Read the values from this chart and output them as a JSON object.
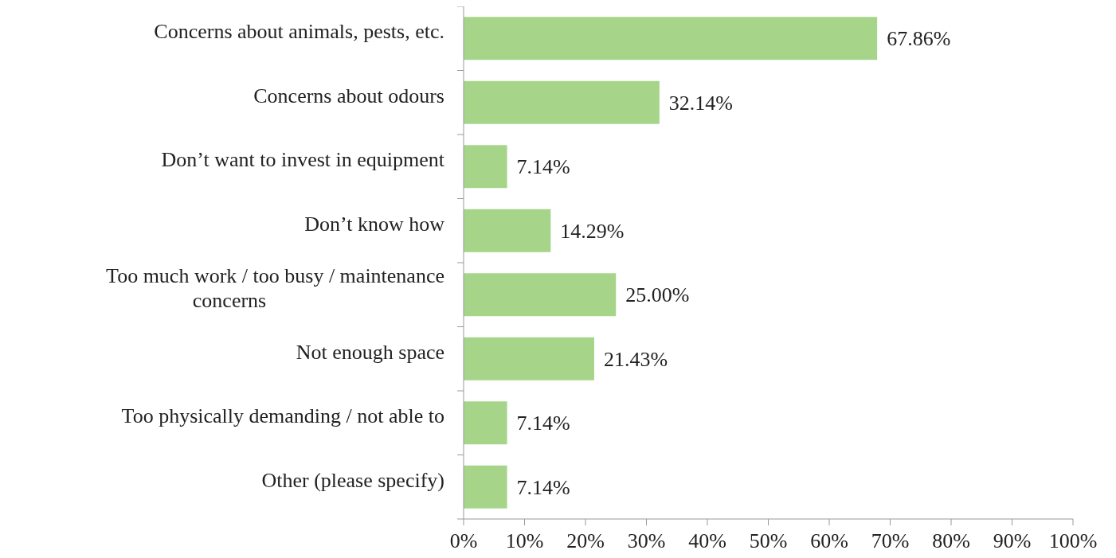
{
  "chart_data": {
    "type": "bar",
    "orientation": "horizontal",
    "categories": [
      "Concerns about animals, pests, etc.",
      "Concerns about odours",
      "Don’t want to invest in equipment",
      "Don’t know how",
      "Too much work / too busy / maintenance concerns",
      "Not enough space",
      "Too physically demanding / not able to",
      "Other (please specify)"
    ],
    "values": [
      67.86,
      32.14,
      7.14,
      14.29,
      25.0,
      21.43,
      7.14,
      7.14
    ],
    "value_labels": [
      "67.86%",
      "32.14%",
      "7.14%",
      "14.29%",
      "25.00%",
      "21.43%",
      "7.14%",
      "7.14%"
    ],
    "color": "#a6d58a",
    "xlim": [
      0,
      100
    ],
    "xticks": [
      {
        "value": 0,
        "label": "0%"
      },
      {
        "value": 10,
        "label": "10%"
      },
      {
        "value": 20,
        "label": "20%"
      },
      {
        "value": 30,
        "label": "30%"
      },
      {
        "value": 40,
        "label": "40%"
      },
      {
        "value": 50,
        "label": "50%"
      },
      {
        "value": 60,
        "label": "60%"
      },
      {
        "value": 70,
        "label": "70%"
      },
      {
        "value": 80,
        "label": "80%"
      },
      {
        "value": 90,
        "label": "90%"
      },
      {
        "value": 100,
        "label": "100%"
      }
    ],
    "grid": false
  }
}
